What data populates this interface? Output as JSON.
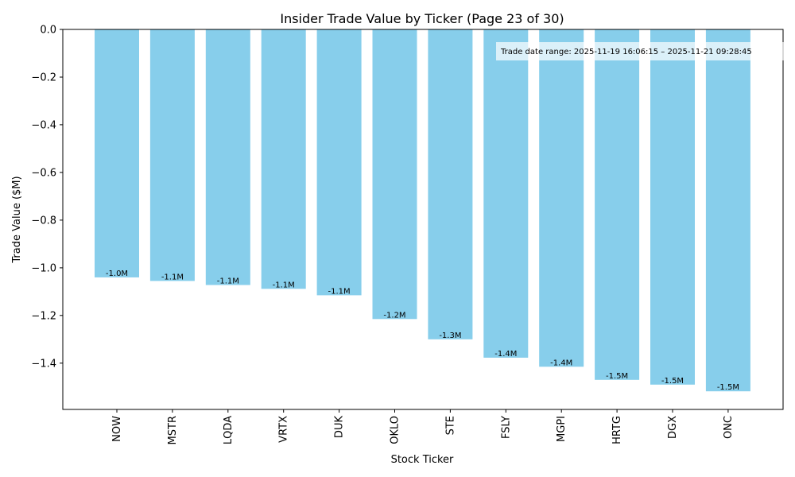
{
  "chart_data": {
    "type": "bar",
    "title": "Insider Trade Value by Ticker (Page 23 of 30)",
    "xlabel": "Stock Ticker",
    "ylabel": "Trade Value ($M)",
    "categories": [
      "NOW",
      "MSTR",
      "LQDA",
      "VRTX",
      "DUK",
      "OKLO",
      "STE",
      "FSLY",
      "MGPI",
      "HRTG",
      "DGX",
      "ONC"
    ],
    "values": [
      -1.04,
      -1.055,
      -1.072,
      -1.088,
      -1.115,
      -1.215,
      -1.3,
      -1.377,
      -1.415,
      -1.47,
      -1.49,
      -1.518
    ],
    "data_labels": [
      "-1.0M",
      "-1.1M",
      "-1.1M",
      "-1.1M",
      "-1.1M",
      "-1.2M",
      "-1.3M",
      "-1.4M",
      "-1.4M",
      "-1.5M",
      "-1.5M",
      "-1.5M"
    ],
    "ylim": [
      -1.594,
      0.0
    ],
    "yticks": [
      0.0,
      -0.2,
      -0.4,
      -0.6,
      -0.8,
      -1.0,
      -1.2,
      -1.4
    ],
    "ytick_labels": [
      "0.0",
      "−0.2",
      "−0.4",
      "−0.6",
      "−0.8",
      "−1.0",
      "−1.2",
      "−1.4"
    ],
    "bar_color": "#87CEEB",
    "annotation": "Trade date range: 2025-11-19 16:06:15 – 2025-11-21 09:28:45",
    "grid": false,
    "legend": "none"
  }
}
